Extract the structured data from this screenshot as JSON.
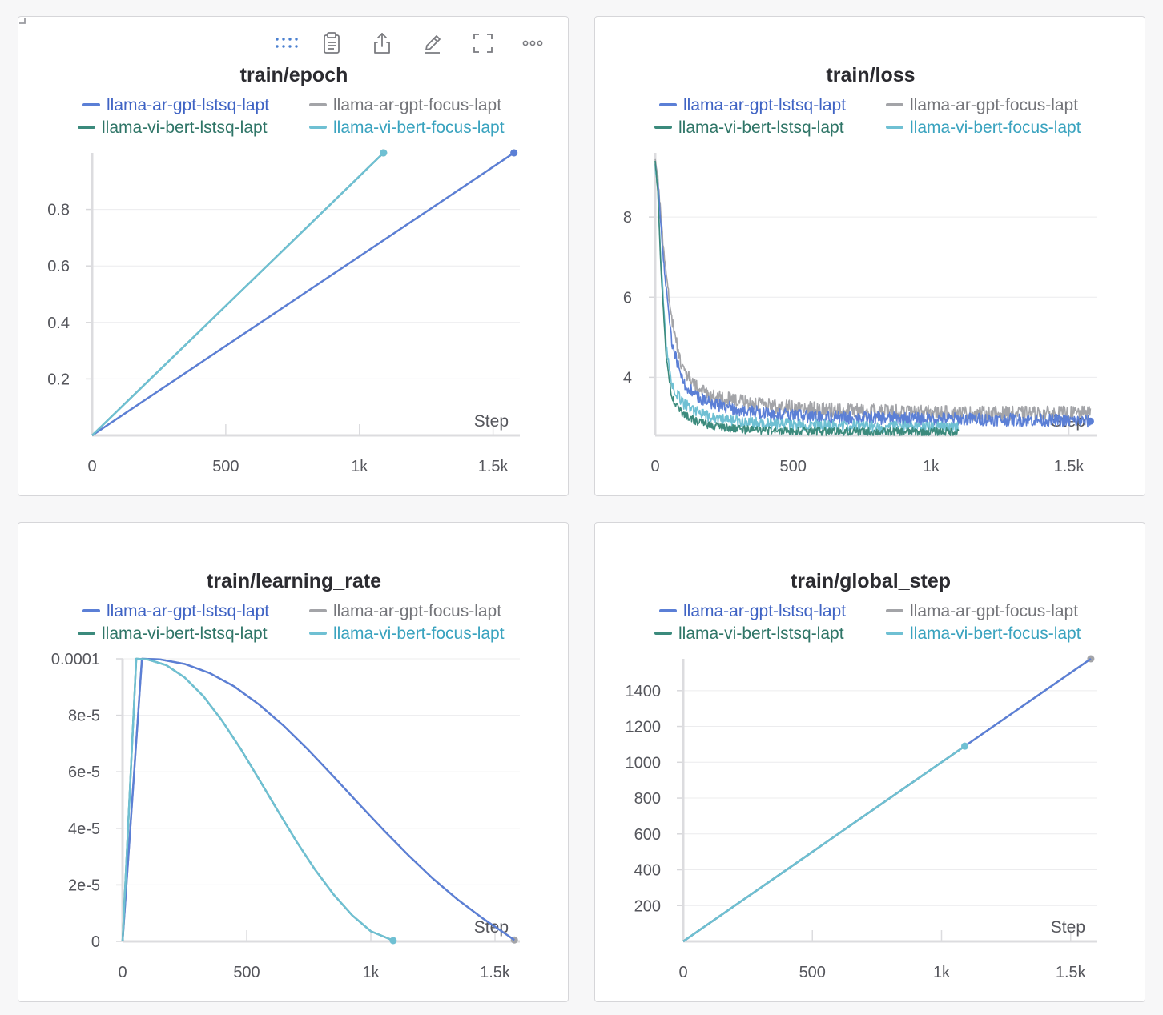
{
  "toolbar": {
    "icons": [
      "drag-handle-icon",
      "clipboard-icon",
      "share-icon",
      "edit-icon",
      "fullscreen-icon",
      "more-icon"
    ]
  },
  "series_colors": {
    "llama-ar-gpt-lstsq-lapt": "#5b7fd6",
    "llama-ar-gpt-focus-lapt": "#a3a4a8",
    "llama-vi-bert-lstsq-lapt": "#3b8a7c",
    "llama-vi-bert-focus-lapt": "#6fc0d3"
  },
  "series_text_colors": {
    "llama-ar-gpt-lstsq-lapt": "#3f63c4",
    "llama-ar-gpt-focus-lapt": "#74757a",
    "llama-vi-bert-lstsq-lapt": "#2f7567",
    "llama-vi-bert-focus-lapt": "#3aa3bf"
  },
  "chart_data": [
    {
      "type": "line",
      "title": "train/epoch",
      "xlabel": "Step",
      "ylabel": "",
      "legend": [
        "llama-ar-gpt-lstsq-lapt",
        "llama-ar-gpt-focus-lapt",
        "llama-vi-bert-lstsq-lapt",
        "llama-vi-bert-focus-lapt"
      ],
      "xlim": [
        0,
        1600
      ],
      "ylim": [
        0,
        1
      ],
      "x_ticks": [
        {
          "v": 0,
          "label": "0"
        },
        {
          "v": 500,
          "label": "500"
        },
        {
          "v": 1000,
          "label": "1k"
        },
        {
          "v": 1500,
          "label": "1.5k"
        }
      ],
      "y_ticks": [
        {
          "v": 0.2,
          "label": "0.2"
        },
        {
          "v": 0.4,
          "label": "0.4"
        },
        {
          "v": 0.6,
          "label": "0.6"
        },
        {
          "v": 0.8,
          "label": "0.8"
        }
      ],
      "series": [
        {
          "name": "llama-ar-gpt-focus-lapt",
          "x": [
            0,
            1578
          ],
          "y": [
            0,
            1
          ],
          "end_marker": true
        },
        {
          "name": "llama-ar-gpt-lstsq-lapt",
          "x": [
            0,
            1578
          ],
          "y": [
            0,
            1
          ],
          "end_marker": true
        },
        {
          "name": "llama-vi-bert-lstsq-lapt",
          "x": [
            0,
            1090
          ],
          "y": [
            0,
            1
          ],
          "end_marker": true
        },
        {
          "name": "llama-vi-bert-focus-lapt",
          "x": [
            0,
            1090
          ],
          "y": [
            0,
            1
          ],
          "end_marker": true
        }
      ]
    },
    {
      "type": "line",
      "title": "train/loss",
      "xlabel": "Step",
      "ylabel": "",
      "legend": [
        "llama-ar-gpt-lstsq-lapt",
        "llama-ar-gpt-focus-lapt",
        "llama-vi-bert-lstsq-lapt",
        "llama-vi-bert-focus-lapt"
      ],
      "xlim": [
        0,
        1600
      ],
      "ylim": [
        2.55,
        9.6
      ],
      "x_ticks": [
        {
          "v": 0,
          "label": "0"
        },
        {
          "v": 500,
          "label": "500"
        },
        {
          "v": 1000,
          "label": "1k"
        },
        {
          "v": 1500,
          "label": "1.5k"
        }
      ],
      "y_ticks": [
        {
          "v": 4,
          "label": "4"
        },
        {
          "v": 6,
          "label": "6"
        },
        {
          "v": 8,
          "label": "8"
        }
      ],
      "series": [
        {
          "name": "llama-ar-gpt-focus-lapt",
          "x": [
            0,
            10,
            30,
            60,
            100,
            150,
            200,
            300,
            400,
            500,
            600,
            800,
            1000,
            1200,
            1400,
            1578
          ],
          "y": [
            9.4,
            9.0,
            7.2,
            5.4,
            4.2,
            3.75,
            3.55,
            3.4,
            3.3,
            3.25,
            3.2,
            3.15,
            3.12,
            3.1,
            3.1,
            3.1
          ],
          "noise": 0.18,
          "end_marker": false
        },
        {
          "name": "llama-ar-gpt-lstsq-lapt",
          "x": [
            0,
            10,
            30,
            60,
            100,
            150,
            200,
            300,
            400,
            500,
            600,
            800,
            1000,
            1200,
            1400,
            1578
          ],
          "y": [
            9.3,
            8.8,
            6.9,
            4.9,
            3.9,
            3.5,
            3.35,
            3.2,
            3.1,
            3.05,
            3.0,
            2.98,
            2.97,
            2.95,
            2.93,
            2.9
          ],
          "noise": 0.16,
          "end_marker": true
        },
        {
          "name": "llama-vi-bert-focus-lapt",
          "x": [
            0,
            10,
            20,
            40,
            60,
            100,
            150,
            200,
            300,
            400,
            600,
            800,
            1000,
            1100
          ],
          "y": [
            9.3,
            8.6,
            7.0,
            4.8,
            3.8,
            3.35,
            3.15,
            3.0,
            2.9,
            2.85,
            2.8,
            2.77,
            2.76,
            2.75
          ],
          "noise": 0.14,
          "end_marker": false
        },
        {
          "name": "llama-vi-bert-lstsq-lapt",
          "x": [
            0,
            10,
            20,
            40,
            60,
            100,
            150,
            200,
            300,
            400,
            600,
            800,
            1000,
            1100
          ],
          "y": [
            9.4,
            8.6,
            6.8,
            4.5,
            3.5,
            3.1,
            2.9,
            2.8,
            2.7,
            2.67,
            2.65,
            2.64,
            2.64,
            2.64
          ],
          "noise": 0.1,
          "end_marker": false
        }
      ]
    },
    {
      "type": "line",
      "title": "train/learning_rate",
      "xlabel": "Step",
      "ylabel": "",
      "legend": [
        "llama-ar-gpt-lstsq-lapt",
        "llama-ar-gpt-focus-lapt",
        "llama-vi-bert-lstsq-lapt",
        "llama-vi-bert-focus-lapt"
      ],
      "xlim": [
        0,
        1600
      ],
      "ylim": [
        0,
        0.0001
      ],
      "x_ticks": [
        {
          "v": 0,
          "label": "0"
        },
        {
          "v": 500,
          "label": "500"
        },
        {
          "v": 1000,
          "label": "1k"
        },
        {
          "v": 1500,
          "label": "1.5k"
        }
      ],
      "y_ticks": [
        {
          "v": 0,
          "label": "0"
        },
        {
          "v": 2e-05,
          "label": "2e-5"
        },
        {
          "v": 4e-05,
          "label": "4e-5"
        },
        {
          "v": 6e-05,
          "label": "6e-5"
        },
        {
          "v": 8e-05,
          "label": "8e-5"
        },
        {
          "v": 0.0001,
          "label": "0.0001"
        }
      ],
      "series": [
        {
          "name": "llama-ar-gpt-focus-lapt",
          "x": [
            0,
            78,
            150,
            250,
            350,
            450,
            550,
            650,
            750,
            850,
            950,
            1050,
            1150,
            1250,
            1350,
            1450,
            1578
          ],
          "y": [
            0,
            0.0001,
            9.98e-05,
            9.82e-05,
            9.5e-05,
            9.02e-05,
            8.38e-05,
            7.62e-05,
            6.76e-05,
            5.83e-05,
            4.88e-05,
            3.95e-05,
            3.06e-05,
            2.22e-05,
            1.48e-05,
            8.2e-06,
            5e-07
          ],
          "end_marker": true
        },
        {
          "name": "llama-ar-gpt-lstsq-lapt",
          "x": [
            0,
            78,
            150,
            250,
            350,
            450,
            550,
            650,
            750,
            850,
            950,
            1050,
            1150,
            1250,
            1350,
            1450,
            1578
          ],
          "y": [
            0,
            0.0001,
            9.98e-05,
            9.82e-05,
            9.5e-05,
            9.02e-05,
            8.38e-05,
            7.62e-05,
            6.76e-05,
            5.83e-05,
            4.88e-05,
            3.95e-05,
            3.06e-05,
            2.22e-05,
            1.48e-05,
            8.2e-06,
            5e-07
          ],
          "end_marker": false
        },
        {
          "name": "llama-vi-bert-lstsq-lapt",
          "x": [
            0,
            55,
            100,
            175,
            250,
            325,
            400,
            475,
            550,
            625,
            700,
            775,
            850,
            925,
            1000,
            1090
          ],
          "y": [
            0,
            0.0001,
            9.98e-05,
            9.78e-05,
            9.34e-05,
            8.68e-05,
            7.82e-05,
            6.82e-05,
            5.73e-05,
            4.62e-05,
            3.54e-05,
            2.54e-05,
            1.66e-05,
            9.2e-06,
            3.6e-06,
            3e-07
          ],
          "end_marker": false
        },
        {
          "name": "llama-vi-bert-focus-lapt",
          "x": [
            0,
            55,
            100,
            175,
            250,
            325,
            400,
            475,
            550,
            625,
            700,
            775,
            850,
            925,
            1000,
            1090
          ],
          "y": [
            0,
            0.0001,
            9.98e-05,
            9.78e-05,
            9.34e-05,
            8.68e-05,
            7.82e-05,
            6.82e-05,
            5.73e-05,
            4.62e-05,
            3.54e-05,
            2.54e-05,
            1.66e-05,
            9.2e-06,
            3.6e-06,
            3e-07
          ],
          "end_marker": true
        }
      ]
    },
    {
      "type": "line",
      "title": "train/global_step",
      "xlabel": "Step",
      "ylabel": "",
      "legend": [
        "llama-ar-gpt-lstsq-lapt",
        "llama-ar-gpt-focus-lapt",
        "llama-vi-bert-lstsq-lapt",
        "llama-vi-bert-focus-lapt"
      ],
      "xlim": [
        0,
        1600
      ],
      "ylim": [
        0,
        1578
      ],
      "x_ticks": [
        {
          "v": 0,
          "label": "0"
        },
        {
          "v": 500,
          "label": "500"
        },
        {
          "v": 1000,
          "label": "1k"
        },
        {
          "v": 1500,
          "label": "1.5k"
        }
      ],
      "y_ticks": [
        {
          "v": 200,
          "label": "200"
        },
        {
          "v": 400,
          "label": "400"
        },
        {
          "v": 600,
          "label": "600"
        },
        {
          "v": 800,
          "label": "800"
        },
        {
          "v": 1000,
          "label": "1000"
        },
        {
          "v": 1200,
          "label": "1200"
        },
        {
          "v": 1400,
          "label": "1400"
        }
      ],
      "series": [
        {
          "name": "llama-ar-gpt-focus-lapt",
          "x": [
            0,
            1578
          ],
          "y": [
            0,
            1578
          ],
          "end_marker": true
        },
        {
          "name": "llama-ar-gpt-lstsq-lapt",
          "x": [
            0,
            1578
          ],
          "y": [
            0,
            1578
          ],
          "end_marker": false
        },
        {
          "name": "llama-vi-bert-lstsq-lapt",
          "x": [
            0,
            1090
          ],
          "y": [
            0,
            1090
          ],
          "end_marker": false
        },
        {
          "name": "llama-vi-bert-focus-lapt",
          "x": [
            0,
            1090
          ],
          "y": [
            0,
            1090
          ],
          "end_marker": true
        }
      ]
    }
  ]
}
